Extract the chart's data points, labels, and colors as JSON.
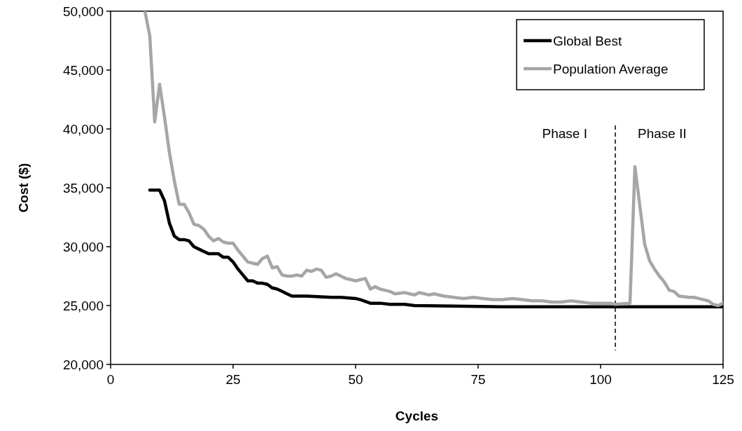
{
  "chart_data": {
    "type": "line",
    "xlabel": "Cycles",
    "ylabel": "Cost ($)",
    "xlim": [
      0,
      125
    ],
    "xticks": [
      0,
      25,
      50,
      75,
      100,
      125
    ],
    "ylim": [
      20000,
      50000
    ],
    "yticks": [
      {
        "value": 20000,
        "label": "20,000"
      },
      {
        "value": 25000,
        "label": "25,000"
      },
      {
        "value": 30000,
        "label": "30,000"
      },
      {
        "value": 35000,
        "label": "35,000"
      },
      {
        "value": 40000,
        "label": "40,000"
      },
      {
        "value": 45000,
        "label": "45,000"
      },
      {
        "value": 50000,
        "label": "50,000"
      }
    ],
    "grid": false,
    "legend": "top right",
    "line_style": "solid",
    "series": [
      {
        "name": "Global Best",
        "color": "#000000",
        "x": [
          8,
          9,
          10,
          11,
          12,
          13,
          14,
          15,
          16,
          17,
          18,
          19,
          20,
          22,
          23,
          24,
          25,
          26,
          27,
          28,
          29,
          30,
          31,
          32,
          33,
          34,
          35,
          36,
          37,
          40,
          45,
          47,
          50,
          51,
          53,
          55,
          57,
          60,
          62,
          70,
          80,
          125
        ],
        "values": [
          34800,
          34800,
          34800,
          33900,
          32000,
          30900,
          30600,
          30600,
          30500,
          30000,
          29800,
          29600,
          29400,
          29400,
          29100,
          29100,
          28700,
          28100,
          27600,
          27100,
          27100,
          26900,
          26900,
          26800,
          26500,
          26400,
          26200,
          26000,
          25800,
          25800,
          25700,
          25700,
          25600,
          25500,
          25200,
          25200,
          25100,
          25100,
          25000,
          24950,
          24900,
          24900
        ]
      },
      {
        "name": "Population Average",
        "color": "#a6a6a6",
        "x": [
          7,
          8,
          9,
          10,
          11,
          12,
          13,
          14,
          15,
          16,
          17,
          18,
          19,
          20,
          21,
          22,
          23,
          24,
          25,
          26,
          27,
          28,
          29,
          30,
          31,
          32,
          33,
          34,
          35,
          36,
          37,
          38,
          39,
          40,
          41,
          42,
          43,
          44,
          45,
          46,
          47,
          48,
          49,
          50,
          51,
          52,
          53,
          54,
          55,
          56,
          57,
          58,
          60,
          62,
          63,
          65,
          66,
          68,
          70,
          72,
          74,
          76,
          78,
          80,
          82,
          84,
          86,
          88,
          90,
          92,
          94,
          96,
          98,
          100,
          102,
          103,
          106,
          107,
          108,
          109,
          110,
          111,
          112,
          113,
          114,
          115,
          116,
          118,
          119,
          120,
          121,
          122,
          123,
          124,
          125
        ],
        "values": [
          50000,
          47900,
          40600,
          43800,
          41000,
          38000,
          35600,
          33600,
          33600,
          32900,
          31900,
          31800,
          31500,
          30900,
          30500,
          30700,
          30400,
          30300,
          30300,
          29700,
          29200,
          28700,
          28600,
          28500,
          29000,
          29200,
          28200,
          28300,
          27600,
          27500,
          27500,
          27600,
          27500,
          28000,
          27900,
          28100,
          28000,
          27400,
          27500,
          27700,
          27500,
          27300,
          27200,
          27100,
          27200,
          27300,
          26400,
          26600,
          26400,
          26300,
          26200,
          26000,
          26100,
          25900,
          26100,
          25900,
          26000,
          25800,
          25700,
          25600,
          25700,
          25600,
          25500,
          25500,
          25600,
          25500,
          25400,
          25400,
          25300,
          25300,
          25400,
          25300,
          25200,
          25200,
          25200,
          25100,
          25200,
          36800,
          33500,
          30200,
          28800,
          28100,
          27500,
          27000,
          26300,
          26200,
          25800,
          25700,
          25700,
          25600,
          25500,
          25400,
          25100,
          25000,
          25200
        ]
      }
    ],
    "ref_lines": [
      {
        "axis": "x",
        "value": 103,
        "line_style": "dashed",
        "color": "#000000"
      }
    ],
    "annotations": [
      "Phase I",
      "Phase II"
    ]
  }
}
